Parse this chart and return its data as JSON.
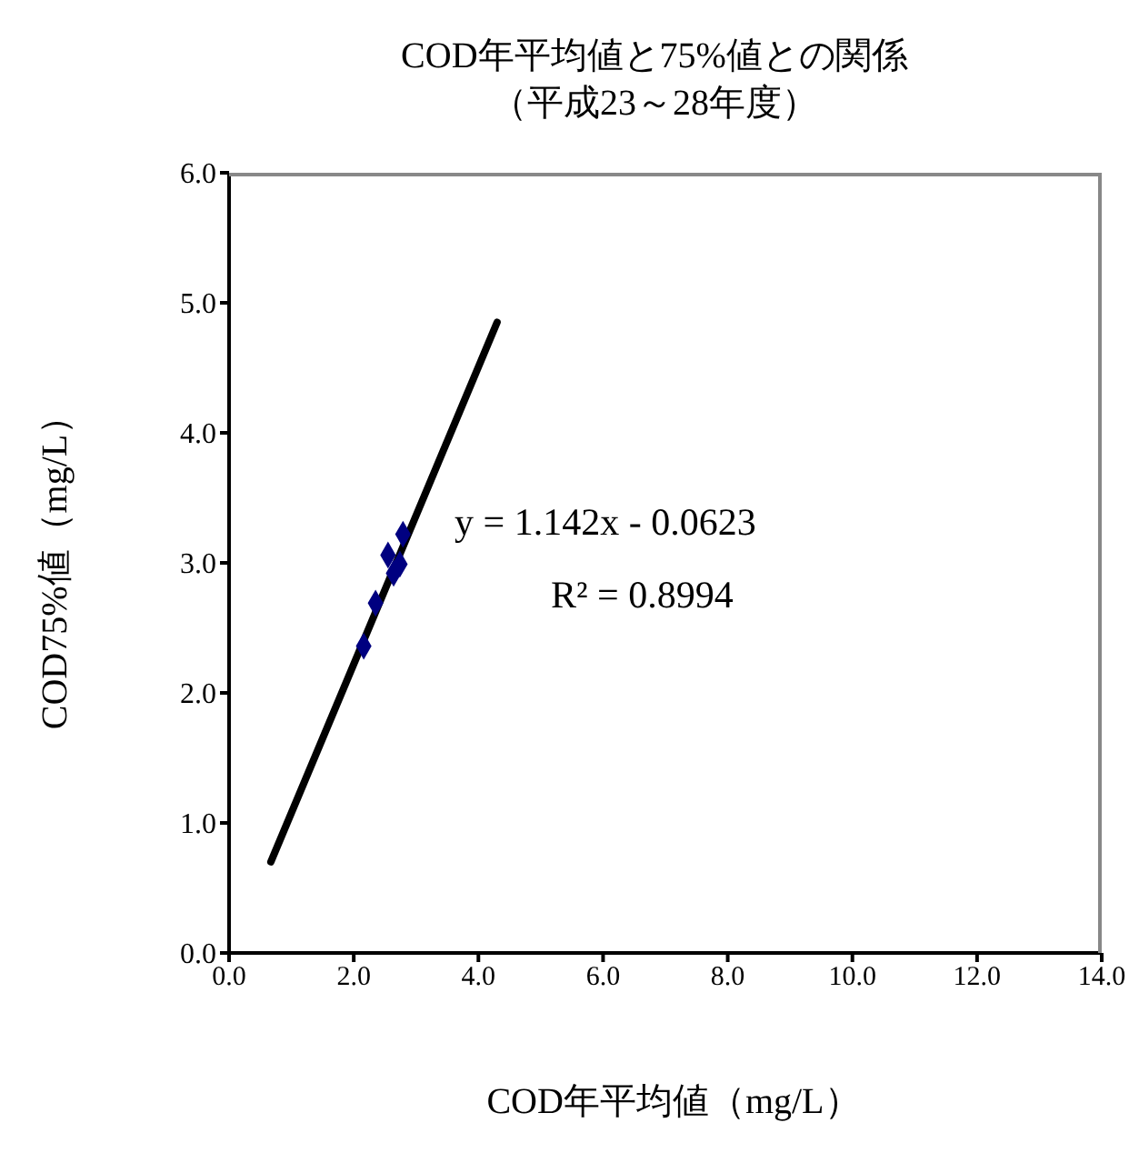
{
  "chart_data": {
    "type": "scatter",
    "title": "COD年平均値と75%値との関係",
    "subtitle": "（平成23～28年度）",
    "xlabel": "COD年平均値（mg/L）",
    "ylabel": "COD75%値（mg/L）",
    "xlim": [
      0,
      14
    ],
    "xticks": [
      {
        "value": 0,
        "label": "0.0"
      },
      {
        "value": 2,
        "label": "2.0"
      },
      {
        "value": 4,
        "label": "4.0"
      },
      {
        "value": 6,
        "label": "6.0"
      },
      {
        "value": 8,
        "label": "8.0"
      },
      {
        "value": 10,
        "label": "10.0"
      },
      {
        "value": 12,
        "label": "12.0"
      },
      {
        "value": 14,
        "label": "14.0"
      }
    ],
    "ylim": [
      0,
      6
    ],
    "yticks": [
      {
        "value": 0,
        "label": "0.0"
      },
      {
        "value": 1,
        "label": "1.0"
      },
      {
        "value": 2,
        "label": "2.0"
      },
      {
        "value": 3,
        "label": "3.0"
      },
      {
        "value": 4,
        "label": "4.0"
      },
      {
        "value": 5,
        "label": "5.0"
      },
      {
        "value": 6,
        "label": "6.0"
      }
    ],
    "grid": false,
    "legend": false,
    "marker": "diamond",
    "series": [
      {
        "type": "scatter",
        "color": "#000080",
        "x": [
          2.16,
          2.35,
          2.55,
          2.64,
          2.74,
          2.79
        ],
        "values": [
          2.36,
          2.69,
          3.06,
          2.92,
          2.99,
          3.22
        ]
      },
      {
        "type": "line",
        "color": "#000000",
        "marker": "none",
        "x": [
          0.67,
          4.3
        ],
        "values": [
          0.7,
          4.85
        ]
      }
    ],
    "annotations": [
      "y = 1.142x - 0.0623",
      "R² = 0.8994"
    ]
  }
}
